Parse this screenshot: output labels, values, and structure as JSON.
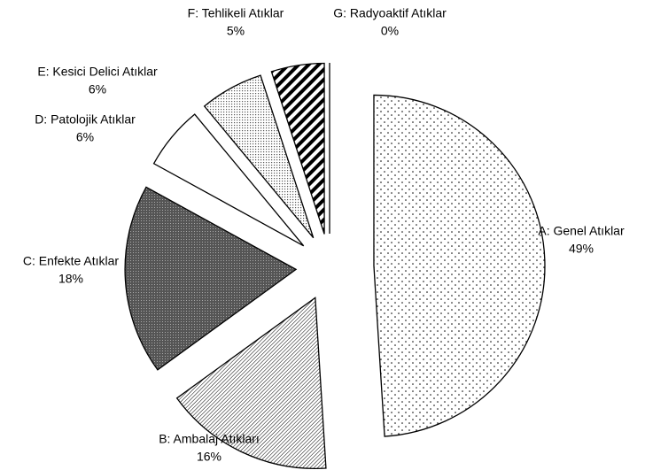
{
  "chart_data": {
    "type": "pie",
    "categories": [
      "A: Genel Atıklar",
      "B: Ambalaj Atıkları",
      "C: Enfekte Atıklar",
      "D: Patolojik Atıklar",
      "E: Kesici Delici Atıklar",
      "F: Tehlikeli Atıklar",
      "G: Radyoaktif Atıklar"
    ],
    "values": [
      49,
      16,
      18,
      6,
      6,
      5,
      0
    ],
    "value_labels": [
      "49%",
      "16%",
      "18%",
      "6%",
      "6%",
      "5%",
      "0%"
    ]
  }
}
